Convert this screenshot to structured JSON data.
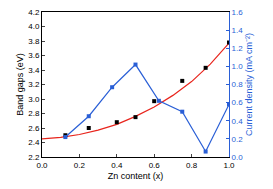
{
  "chart_data": {
    "type": "scatter",
    "x_label": "Zn content (x)",
    "y_label": "Band gaps (eV)",
    "y2_label": "Current density (mA cm⁻²)",
    "xlim": [
      0,
      1
    ],
    "xticks": [
      {
        "value": 0,
        "label": "0.0"
      },
      0.2,
      0.4,
      0.6,
      0.8,
      {
        "value": 1,
        "label": "1.0"
      }
    ],
    "ylim": [
      2.2,
      4.2
    ],
    "yticks": [
      2.2,
      2.4,
      2.6,
      2.8,
      {
        "value": 3,
        "label": "3.0"
      },
      3.2,
      3.4,
      3.6,
      3.8,
      {
        "value": 4,
        "label": "4.0"
      },
      4.2
    ],
    "y2lim": [
      0,
      1.6
    ],
    "y2ticks": [
      {
        "value": 0,
        "label": "0.0"
      },
      0.2,
      0.4,
      0.6,
      0.8,
      {
        "value": 1,
        "label": "1.0"
      },
      1.2,
      1.4,
      1.6
    ],
    "grid": false,
    "series": [
      {
        "type": "line",
        "color": "#e8241c",
        "marker": "none",
        "line_style": "solid",
        "x": [
          0,
          0.1,
          0.2,
          0.3,
          0.4,
          0.5,
          0.6,
          0.7,
          0.8,
          0.9,
          1.0
        ],
        "values": [
          2.45,
          2.47,
          2.51,
          2.57,
          2.65,
          2.76,
          2.89,
          3.05,
          3.24,
          3.48,
          3.77
        ]
      },
      {
        "type": "scatter",
        "color": "#000000",
        "marker": "square",
        "x": [
          0.125,
          0.25,
          0.4,
          0.5,
          0.6,
          0.75,
          0.875,
          1.0
        ],
        "values": [
          2.5,
          2.6,
          2.68,
          2.75,
          2.97,
          3.25,
          3.43,
          3.78
        ]
      },
      {
        "type": "line",
        "color": "#2a5fd6",
        "marker": "square",
        "line_style": "solid",
        "axis": "y2",
        "x": [
          0.125,
          0.25,
          0.375,
          0.5,
          0.625,
          0.75,
          0.875,
          1.0
        ],
        "values": [
          0.22,
          0.45,
          0.77,
          1.02,
          0.62,
          0.5,
          0.06,
          0.58
        ]
      }
    ]
  }
}
